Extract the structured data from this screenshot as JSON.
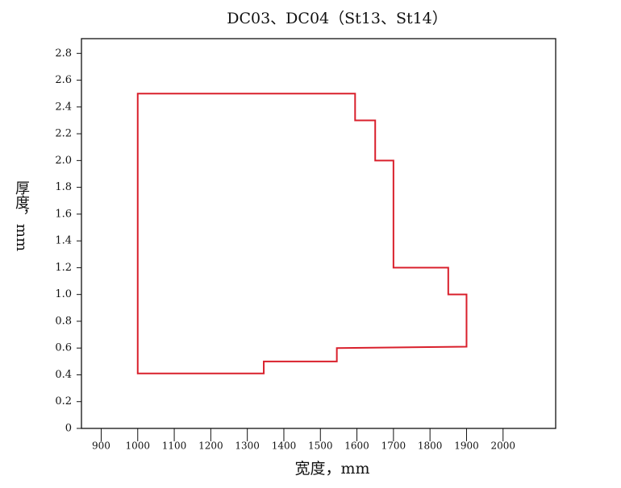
{
  "chart_data": {
    "type": "line",
    "title": "DC03、DC04（St13、St14）",
    "x_label": "宽度，mm",
    "y_label": "厚度，mm",
    "series": [
      {
        "color": "#d9202c",
        "x": [
          1000,
          1595,
          1595,
          1650,
          1650,
          1700,
          1700,
          1850,
          1850,
          1900,
          1900,
          1545,
          1545,
          1345,
          1345,
          1000
        ],
        "y": [
          2.5,
          2.5,
          2.3,
          2.3,
          2.0,
          2.0,
          1.2,
          1.2,
          1.0,
          1.0,
          0.61,
          0.6,
          0.5,
          0.5,
          0.41,
          0.41
        ]
      }
    ],
    "closed": true,
    "xlim": [
      846,
      2144
    ],
    "ylim": [
      0,
      2.91
    ],
    "xticks": [
      900,
      1000,
      1100,
      1200,
      1300,
      1400,
      1500,
      1600,
      1700,
      1800,
      1900,
      2000
    ],
    "yticks": [
      0,
      0.2,
      0.4,
      0.6,
      0.8,
      {
        "value": 1,
        "label": "1.0"
      },
      1.2,
      1.4,
      1.6,
      1.8,
      {
        "value": 2,
        "label": "2.0"
      },
      2.2,
      2.4,
      2.6,
      2.8
    ]
  }
}
